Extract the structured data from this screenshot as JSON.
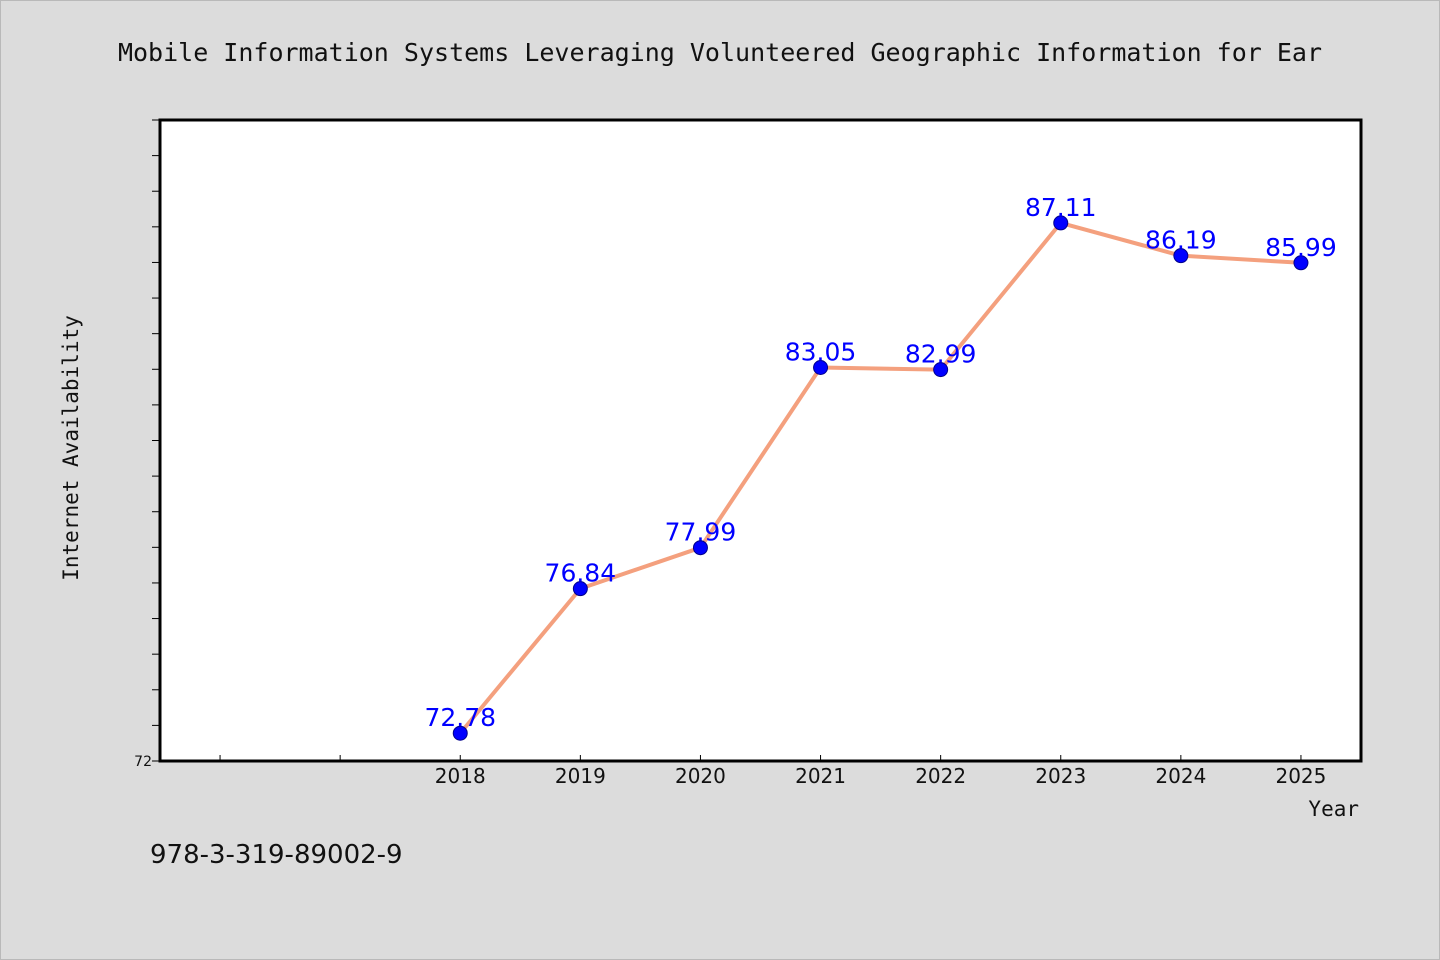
{
  "colors": {
    "background": "#dcdcdc",
    "plot_background": "#ffffff",
    "line": "#f4a07e",
    "marker": "#0000ff",
    "data_label": "#0000ff"
  },
  "footnote": "978-3-319-89002-9",
  "chart_data": {
    "type": "line",
    "title": "Mobile Information Systems Leveraging Volunteered Geographic Information for Ear",
    "xlabel": "Year",
    "ylabel": "Internet Availability",
    "x": [
      2018,
      2019,
      2020,
      2021,
      2022,
      2023,
      2024,
      2025
    ],
    "x_tick_labels": [
      "2018",
      "2019",
      "2020",
      "2021",
      "2022",
      "2023",
      "2024",
      "2025"
    ],
    "xlim": [
      2015.5,
      2025.5
    ],
    "series": [
      {
        "values": [
          72.78,
          76.84,
          77.99,
          83.05,
          82.99,
          87.11,
          86.19,
          85.99
        ],
        "labels": [
          "72.78",
          "76.84",
          "77.99",
          "83.05",
          "82.99",
          "87.11",
          "86.19",
          "85.99"
        ]
      }
    ],
    "ylim": [
      72,
      90
    ],
    "y_tick_labels": [
      "72"
    ],
    "y_minor_step": 1,
    "grid": false,
    "legend": "none"
  }
}
